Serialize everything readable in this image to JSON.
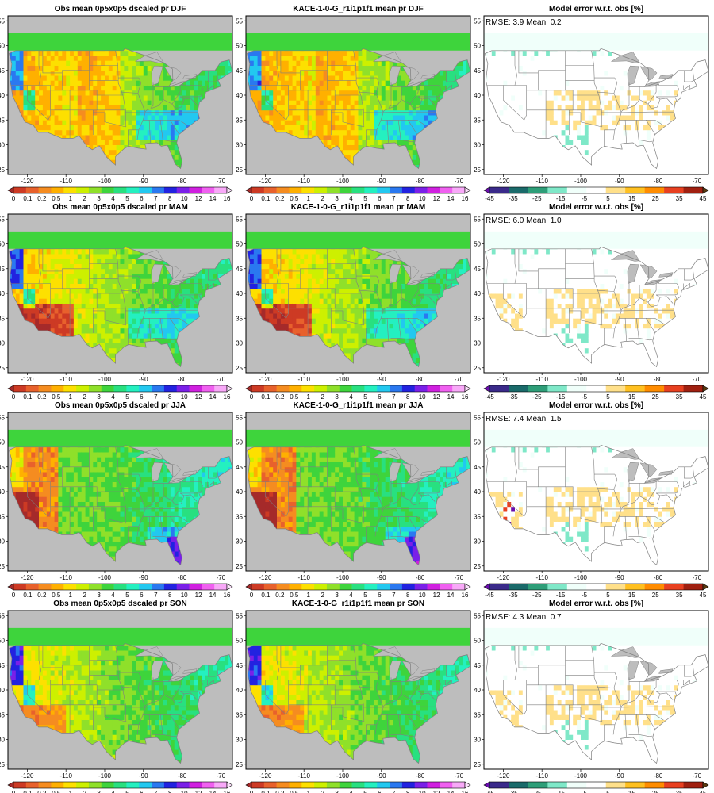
{
  "figure": {
    "rows": [
      {
        "season": "DJF",
        "panels": [
          {
            "kind": "obs",
            "title": "Obs mean 0p5x0p5 dscaled pr DJF"
          },
          {
            "kind": "model",
            "title": "KACE-1-0-G_r1i1p1f1 mean pr DJF"
          },
          {
            "kind": "error",
            "title": "Model error w.r.t. obs [%]",
            "stats": "RMSE: 3.9  Mean: 0.2"
          }
        ]
      },
      {
        "season": "MAM",
        "panels": [
          {
            "kind": "obs",
            "title": "Obs mean 0p5x0p5 dscaled pr MAM"
          },
          {
            "kind": "model",
            "title": "KACE-1-0-G_r1i1p1f1 mean pr MAM"
          },
          {
            "kind": "error",
            "title": "Model error w.r.t. obs [%]",
            "stats": "RMSE: 6.0  Mean: 1.0"
          }
        ]
      },
      {
        "season": "JJA",
        "panels": [
          {
            "kind": "obs",
            "title": "Obs mean 0p5x0p5 dscaled pr JJA"
          },
          {
            "kind": "model",
            "title": "KACE-1-0-G_r1i1p1f1 mean pr JJA"
          },
          {
            "kind": "error",
            "title": "Model error w.r.t. obs [%]",
            "stats": "RMSE: 7.4  Mean: 1.5"
          }
        ]
      },
      {
        "season": "SON",
        "panels": [
          {
            "kind": "obs",
            "title": "Obs mean 0p5x0p5 dscaled pr SON"
          },
          {
            "kind": "model",
            "title": "KACE-1-0-G_r1i1p1f1 mean pr SON"
          },
          {
            "kind": "error",
            "title": "Model error w.r.t. obs [%]",
            "stats": "RMSE: 4.3  Mean: 0.7"
          }
        ]
      }
    ],
    "lon_ticks": [
      "-120",
      "-110",
      "-100",
      "-90",
      "-80",
      "-70"
    ],
    "lat_ticks": [
      "25",
      "30",
      "35",
      "40",
      "45",
      "50",
      "55"
    ],
    "colorbars": {
      "precip": {
        "labels": [
          "0",
          "0.1",
          "0.2",
          "0.5",
          "1",
          "2",
          "3",
          "4",
          "5",
          "6",
          "7",
          "8",
          "10",
          "12",
          "14",
          "16"
        ],
        "colors": [
          "#a52a2a",
          "#cd3a24",
          "#e8612c",
          "#f58c20",
          "#ffb000",
          "#fde000",
          "#cdf000",
          "#8fe02a",
          "#3ed43c",
          "#28e080",
          "#24f0c0",
          "#22c8f0",
          "#2a78f0",
          "#2222e0",
          "#7a20e8",
          "#d020e0",
          "#f060f0",
          "#f8a8f8",
          "#fce0fc"
        ]
      },
      "error": {
        "labels": [
          "-45",
          "-35",
          "-25",
          "-15",
          "-5",
          "5",
          "15",
          "25",
          "35",
          "45"
        ],
        "colors": [
          "#6a0dad",
          "#3a2a8a",
          "#1a6a6a",
          "#2e9e78",
          "#7fe8c8",
          "#f0fffa",
          "#ffffff",
          "#ffe08a",
          "#ffc020",
          "#ff8c00",
          "#e84020",
          "#a02010",
          "#5a3a10"
        ]
      }
    },
    "colors": {
      "mask": "#bdbdbd",
      "border": "#7f7f7f"
    }
  }
}
